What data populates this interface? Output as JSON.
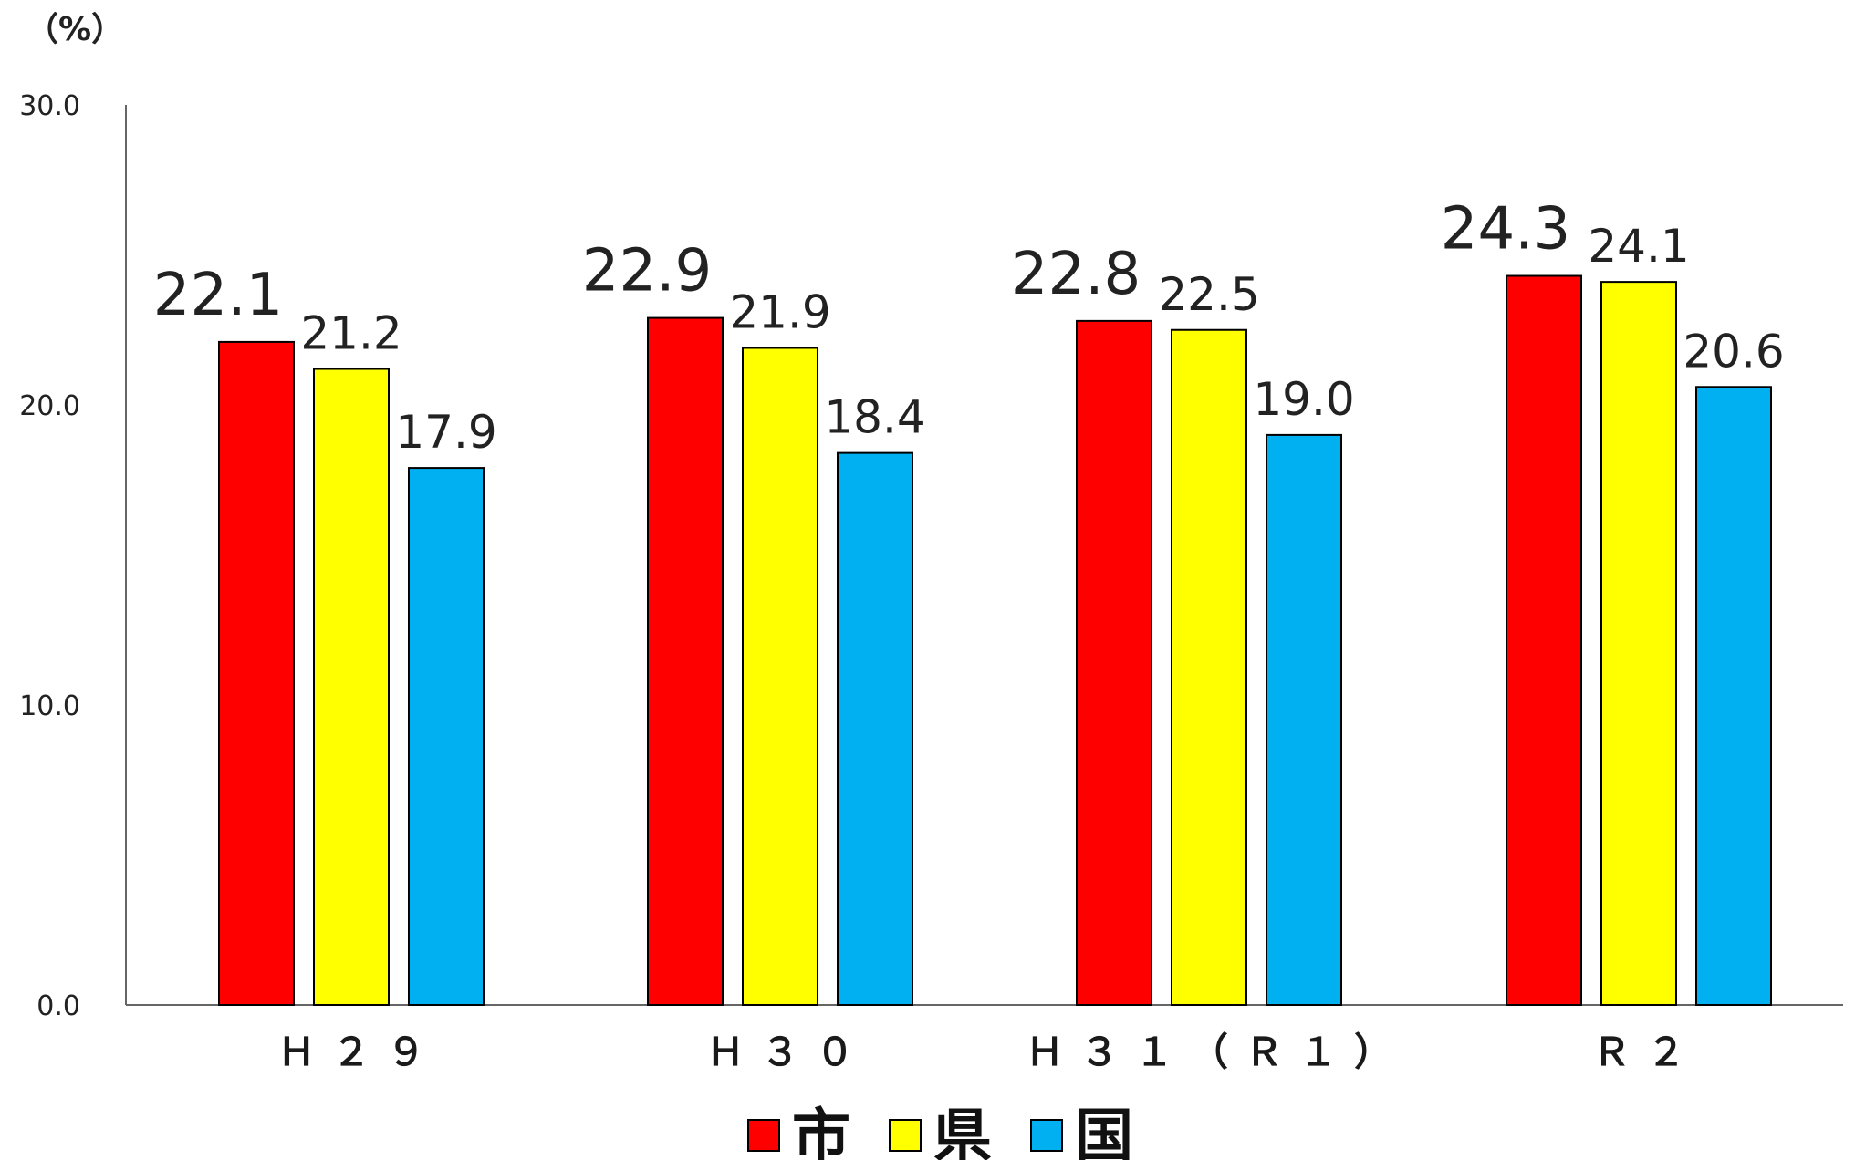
{
  "chart_data": {
    "type": "bar",
    "unit_label": "（%）",
    "categories": [
      "Ｈ２９",
      "Ｈ３０",
      "Ｈ３１（Ｒ１）",
      "Ｒ２"
    ],
    "series": [
      {
        "name": "市",
        "color": "#FF0000",
        "values": [
          22.1,
          22.9,
          22.8,
          24.3
        ]
      },
      {
        "name": "県",
        "color": "#FFFF00",
        "values": [
          21.2,
          21.9,
          22.5,
          24.1
        ]
      },
      {
        "name": "国",
        "color": "#00B0F0",
        "values": [
          17.9,
          18.4,
          19.0,
          20.6
        ]
      }
    ],
    "value_labels": [
      [
        "22.1",
        "22.9",
        "22.8",
        "24.3"
      ],
      [
        "21.2",
        "21.9",
        "22.5",
        "24.1"
      ],
      [
        "17.9",
        "18.4",
        "19.0",
        "20.6"
      ]
    ],
    "ylim": [
      0,
      30
    ],
    "yticks": [
      0,
      10,
      20,
      30
    ],
    "ytick_labels": [
      "0.0",
      "10.0",
      "20.0",
      "30.0"
    ],
    "grid": false,
    "legend_position": "bottom-center"
  }
}
